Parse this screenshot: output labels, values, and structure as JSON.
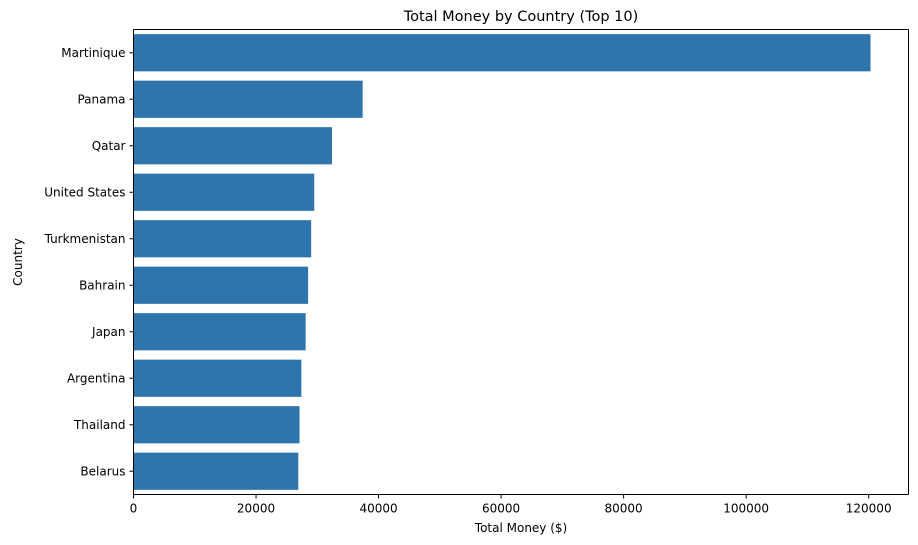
{
  "chart_data": {
    "type": "bar",
    "orientation": "horizontal",
    "title": "Total Money by Country (Top 10)",
    "xlabel": "Total Money ($)",
    "ylabel": "Country",
    "categories": [
      "Martinique",
      "Panama",
      "Qatar",
      "United States",
      "Turkmenistan",
      "Bahrain",
      "Japan",
      "Argentina",
      "Thailand",
      "Belarus"
    ],
    "values": [
      120300,
      37400,
      32400,
      29500,
      29000,
      28500,
      28100,
      27400,
      27100,
      26900
    ],
    "xlim": [
      0,
      126500
    ],
    "xticks": [
      0,
      20000,
      40000,
      60000,
      80000,
      100000,
      120000
    ],
    "xtick_labels": [
      "0",
      "20000",
      "40000",
      "60000",
      "80000",
      "100000",
      "120000"
    ],
    "bar_color": "#2e75ae",
    "grid": false
  }
}
